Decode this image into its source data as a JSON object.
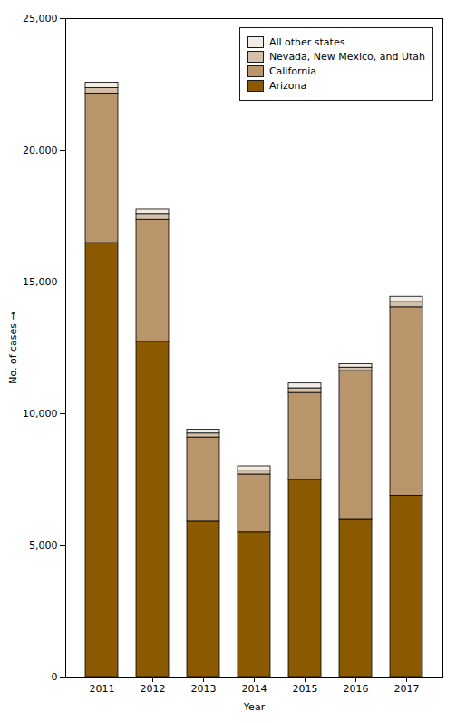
{
  "chart_data": {
    "type": "bar",
    "stacked": true,
    "categories": [
      "2011",
      "2012",
      "2013",
      "2014",
      "2015",
      "2016",
      "2017"
    ],
    "series": [
      {
        "name": "Arizona",
        "color": "#8B5A00",
        "values": [
          16480,
          12730,
          5900,
          5490,
          7490,
          6000,
          6880
        ]
      },
      {
        "name": "California",
        "color": "#B8956A",
        "values": [
          5680,
          4640,
          3200,
          2200,
          3300,
          5620,
          7160
        ]
      },
      {
        "name": "Nevada, New Mexico, and Utah",
        "color": "#D4C0A8",
        "values": [
          200,
          190,
          150,
          150,
          175,
          130,
          200
        ]
      },
      {
        "name": "All other states",
        "color": "#F2EDE4",
        "values": [
          210,
          200,
          150,
          160,
          185,
          130,
          200
        ]
      }
    ],
    "xlabel": "Year",
    "ylabel": "No. of cases",
    "ylim": [
      0,
      25000
    ],
    "yticks": [
      0,
      {
        "value": 5000,
        "label": "5,000"
      },
      {
        "value": 10000,
        "label": "10,000"
      },
      {
        "value": 15000,
        "label": "15,000"
      },
      {
        "value": 20000,
        "label": "20,000"
      },
      {
        "value": 25000,
        "label": "25,000"
      }
    ],
    "legend": "upper right",
    "grid": false
  }
}
